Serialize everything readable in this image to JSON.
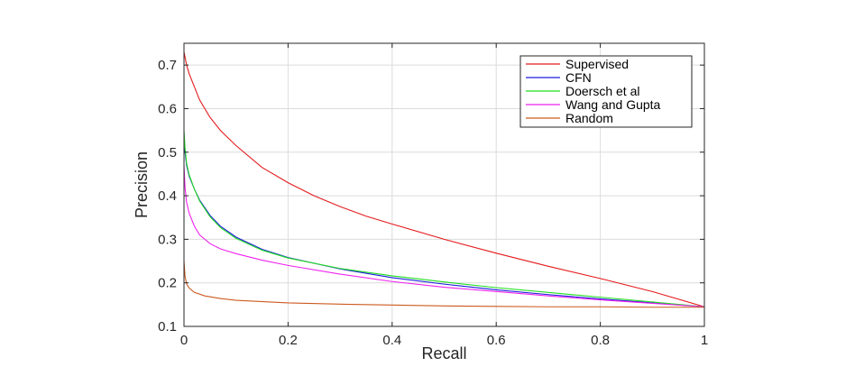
{
  "chart_data": {
    "type": "line",
    "title": "",
    "xlabel": "Recall",
    "ylabel": "Precision",
    "xlim": [
      0,
      1
    ],
    "ylim": [
      0.1,
      0.75
    ],
    "xticks": [
      0,
      0.2,
      0.4,
      0.6,
      0.8,
      1
    ],
    "xtick_labels": [
      "0",
      "0.2",
      "0.4",
      "0.6",
      "0.8",
      "1"
    ],
    "yticks": [
      0.1,
      0.2,
      0.3,
      0.4,
      0.5,
      0.6,
      0.7
    ],
    "ytick_labels": [
      "0.1",
      "0.2",
      "0.3",
      "0.4",
      "0.5",
      "0.6",
      "0.7"
    ],
    "grid": true,
    "legend_position": "top-right",
    "series": [
      {
        "name": "Supervised",
        "color": "#e41a1c",
        "x": [
          0,
          0.005,
          0.01,
          0.02,
          0.03,
          0.05,
          0.07,
          0.1,
          0.15,
          0.2,
          0.25,
          0.3,
          0.35,
          0.4,
          0.5,
          0.6,
          0.7,
          0.8,
          0.9,
          1.0
        ],
        "y": [
          0.73,
          0.7,
          0.68,
          0.65,
          0.62,
          0.58,
          0.55,
          0.515,
          0.465,
          0.43,
          0.4,
          0.375,
          0.353,
          0.335,
          0.3,
          0.268,
          0.238,
          0.21,
          0.18,
          0.145
        ]
      },
      {
        "name": "CFN",
        "color": "#1a1adb",
        "x": [
          0,
          0.002,
          0.005,
          0.01,
          0.02,
          0.03,
          0.05,
          0.07,
          0.1,
          0.15,
          0.2,
          0.3,
          0.4,
          0.5,
          0.6,
          0.7,
          0.8,
          0.9,
          1.0
        ],
        "y": [
          0.54,
          0.5,
          0.47,
          0.445,
          0.415,
          0.39,
          0.355,
          0.33,
          0.305,
          0.277,
          0.258,
          0.232,
          0.212,
          0.197,
          0.184,
          0.173,
          0.163,
          0.154,
          0.145
        ]
      },
      {
        "name": "Doersch et al",
        "color": "#22dd22",
        "x": [
          0,
          0.002,
          0.005,
          0.01,
          0.02,
          0.03,
          0.05,
          0.07,
          0.1,
          0.15,
          0.2,
          0.3,
          0.4,
          0.5,
          0.6,
          0.7,
          0.8,
          0.9,
          1.0
        ],
        "y": [
          0.55,
          0.51,
          0.475,
          0.448,
          0.415,
          0.388,
          0.352,
          0.327,
          0.302,
          0.275,
          0.257,
          0.233,
          0.216,
          0.202,
          0.189,
          0.178,
          0.167,
          0.156,
          0.145
        ]
      },
      {
        "name": "Wang and Gupta",
        "color": "#ee22ee",
        "x": [
          0,
          0.002,
          0.005,
          0.01,
          0.02,
          0.03,
          0.05,
          0.07,
          0.1,
          0.15,
          0.2,
          0.3,
          0.4,
          0.5,
          0.6,
          0.7,
          0.8,
          0.9,
          1.0
        ],
        "y": [
          0.47,
          0.42,
          0.385,
          0.36,
          0.33,
          0.31,
          0.29,
          0.278,
          0.267,
          0.252,
          0.24,
          0.22,
          0.203,
          0.19,
          0.18,
          0.17,
          0.161,
          0.153,
          0.145
        ]
      },
      {
        "name": "Random",
        "color": "#cc5a1e",
        "x": [
          0,
          0.002,
          0.005,
          0.01,
          0.02,
          0.04,
          0.07,
          0.1,
          0.2,
          0.3,
          0.4,
          0.5,
          0.6,
          0.7,
          0.8,
          0.9,
          1.0
        ],
        "y": [
          0.25,
          0.215,
          0.198,
          0.188,
          0.178,
          0.17,
          0.164,
          0.16,
          0.154,
          0.151,
          0.149,
          0.147,
          0.146,
          0.145,
          0.145,
          0.144,
          0.144
        ]
      }
    ]
  }
}
